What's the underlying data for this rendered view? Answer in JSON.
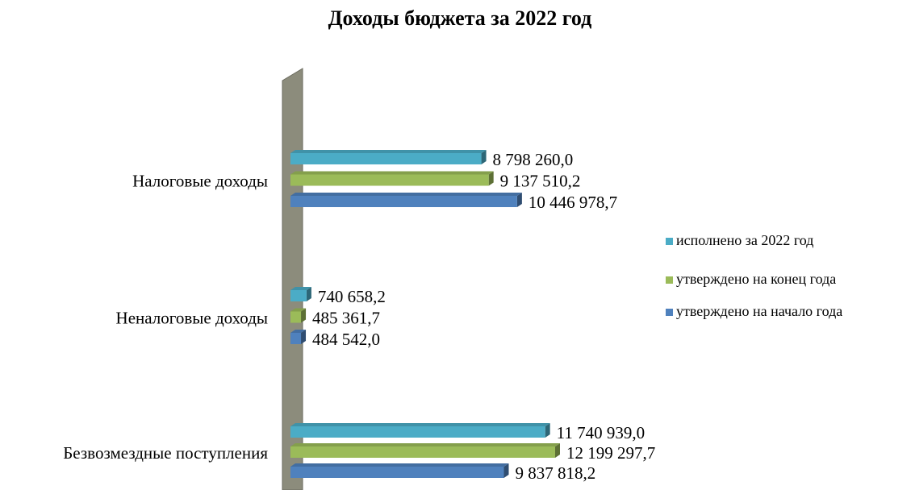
{
  "chart_data": {
    "type": "bar",
    "orientation": "horizontal",
    "title": "Доходы бюджета за 2022 год",
    "categories": [
      "Налоговые доходы",
      "Неналоговые доходы",
      "Безвозмездные поступления"
    ],
    "series": [
      {
        "name": "исполнено за 2022 год",
        "color": "#4bacc6",
        "values": [
          8798260.0,
          740658.2,
          11740939.0
        ],
        "value_labels": [
          "8 798 260,0",
          "740 658,2",
          "11 740 939,0"
        ]
      },
      {
        "name": "утверждено на конец года",
        "color": "#9bbb59",
        "values": [
          9137510.2,
          485361.7,
          12199297.7
        ],
        "value_labels": [
          "9 137 510,2",
          "485 361,7",
          "12 199 297,7"
        ]
      },
      {
        "name": "утверждено на начало года",
        "color": "#4f81bd",
        "values": [
          10446978.7,
          484542.0,
          9837818.2
        ],
        "value_labels": [
          "10 446 978,7",
          "484 542,0",
          "9 837 818,2"
        ]
      }
    ],
    "legend": "right"
  }
}
